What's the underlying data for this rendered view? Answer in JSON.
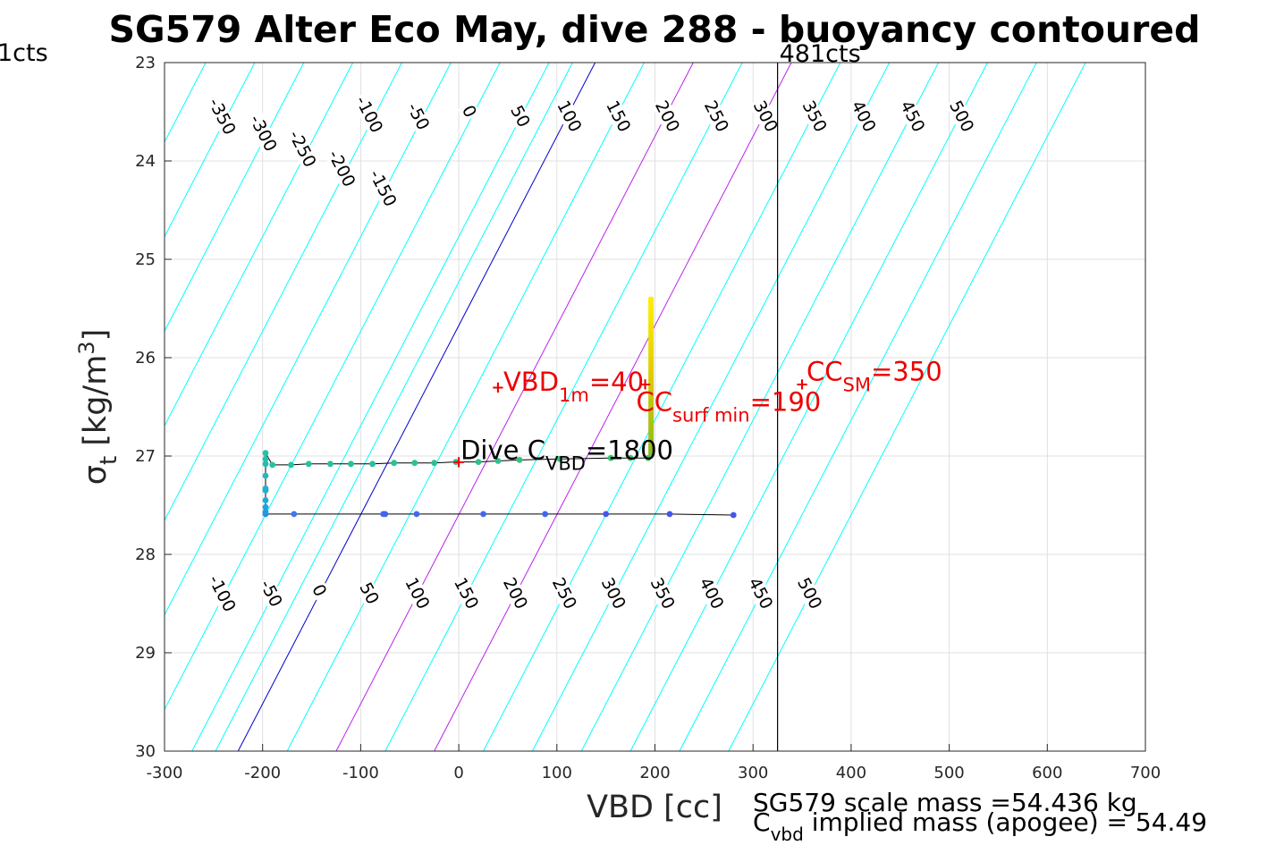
{
  "chart_data": {
    "type": "line",
    "title": "SG579 Alter Eco May, dive 288 - buoyancy contoured",
    "xlabel": "VBD [cc]",
    "ylabel": "σt [kg/m3]",
    "xlim": [
      -300,
      700
    ],
    "ylim": [
      23,
      30
    ],
    "y_reversed": true,
    "grid": true,
    "x_ticks": [
      "-300",
      "-200",
      "-100",
      "0",
      "100",
      "200",
      "300",
      "400",
      "500",
      "600",
      "700"
    ],
    "y_ticks": [
      "23",
      "24",
      "25",
      "26",
      "27",
      "28",
      "29",
      "30"
    ],
    "contour_levels": [
      -350,
      -300,
      -250,
      -200,
      -150,
      -100,
      -50,
      0,
      50,
      100,
      150,
      200,
      250,
      300,
      350,
      400,
      450,
      500
    ],
    "contour_colors": {
      "default": "#00ffff",
      "zero": "#0000cc",
      "highlight": "#bb22ee"
    },
    "contour_intercepts_at_30": [
      {
        "level": -100,
        "x": -272
      },
      {
        "level": -50,
        "x": -248
      },
      {
        "level": 0,
        "x": -225
      },
      {
        "level": 50,
        "x": -175
      },
      {
        "level": 100,
        "x": -125
      },
      {
        "level": 150,
        "x": -75
      },
      {
        "level": 200,
        "x": -25
      },
      {
        "level": 250,
        "x": 25
      },
      {
        "level": 300,
        "x": 75
      },
      {
        "level": 350,
        "x": 125
      },
      {
        "level": 400,
        "x": 175
      },
      {
        "level": 450,
        "x": 225
      },
      {
        "level": 500,
        "x": 275
      }
    ],
    "contour_slope_cc_per_sigma": 52,
    "top_labels": [
      {
        "text": "-350",
        "x": -242,
        "y": 23.55
      },
      {
        "text": "-300",
        "x": -200,
        "y": 23.72
      },
      {
        "text": "-250",
        "x": -160,
        "y": 23.88
      },
      {
        "text": "-200",
        "x": -120,
        "y": 24.08
      },
      {
        "text": "-150",
        "x": -78,
        "y": 24.28
      },
      {
        "text": "-100",
        "x": -92,
        "y": 23.53
      },
      {
        "text": "-50",
        "x": -42,
        "y": 23.55
      },
      {
        "text": "0",
        "x": 10,
        "y": 23.5
      },
      {
        "text": "50",
        "x": 62,
        "y": 23.55
      },
      {
        "text": "100",
        "x": 112,
        "y": 23.55
      },
      {
        "text": "150",
        "x": 162,
        "y": 23.55
      },
      {
        "text": "200",
        "x": 212,
        "y": 23.55
      },
      {
        "text": "250",
        "x": 262,
        "y": 23.55
      },
      {
        "text": "300",
        "x": 312,
        "y": 23.55
      },
      {
        "text": "350",
        "x": 362,
        "y": 23.55
      },
      {
        "text": "400",
        "x": 412,
        "y": 23.55
      },
      {
        "text": "450",
        "x": 462,
        "y": 23.55
      },
      {
        "text": "500",
        "x": 512,
        "y": 23.55
      }
    ],
    "bottom_labels": [
      {
        "text": "-100",
        "x": -242,
        "y": 28.4
      },
      {
        "text": "-50",
        "x": -192,
        "y": 28.4
      },
      {
        "text": "0",
        "x": -143,
        "y": 28.37
      },
      {
        "text": "50",
        "x": -92,
        "y": 28.4
      },
      {
        "text": "100",
        "x": -43,
        "y": 28.4
      },
      {
        "text": "150",
        "x": 7,
        "y": 28.4
      },
      {
        "text": "200",
        "x": 57,
        "y": 28.4
      },
      {
        "text": "250",
        "x": 107,
        "y": 28.4
      },
      {
        "text": "300",
        "x": 157,
        "y": 28.4
      },
      {
        "text": "350",
        "x": 207,
        "y": 28.4
      },
      {
        "text": "400",
        "x": 257,
        "y": 28.4
      },
      {
        "text": "450",
        "x": 307,
        "y": 28.4
      },
      {
        "text": "500",
        "x": 357,
        "y": 28.4
      }
    ],
    "vertical_line": {
      "x": 325,
      "label": "481cts",
      "color": "#000000"
    },
    "left_edge_label": "1cts",
    "dive_series": {
      "name": "dive 288",
      "line_color": "#000000",
      "points": [
        {
          "x": 280,
          "y": 27.6,
          "color": "#4455ee"
        },
        {
          "x": 215,
          "y": 27.59,
          "color": "#4455ee"
        },
        {
          "x": 150,
          "y": 27.59,
          "color": "#4455ee"
        },
        {
          "x": 88,
          "y": 27.59,
          "color": "#4466ee"
        },
        {
          "x": 25,
          "y": 27.59,
          "color": "#4466ee"
        },
        {
          "x": -43,
          "y": 27.59,
          "color": "#4466ee"
        },
        {
          "x": -75,
          "y": 27.59,
          "color": "#4466ee"
        },
        {
          "x": -77,
          "y": 27.59,
          "color": "#4466ee"
        },
        {
          "x": -168,
          "y": 27.59,
          "color": "#4477ee"
        },
        {
          "x": -197,
          "y": 27.59,
          "color": "#2288ee"
        },
        {
          "x": -197,
          "y": 27.57,
          "color": "#2299e0"
        },
        {
          "x": -197,
          "y": 27.52,
          "color": "#20a0dd"
        },
        {
          "x": -197,
          "y": 27.45,
          "color": "#20a8d8"
        },
        {
          "x": -197,
          "y": 27.35,
          "color": "#22b0d0"
        },
        {
          "x": -197,
          "y": 27.33,
          "color": "#22b0d0"
        },
        {
          "x": -197,
          "y": 27.2,
          "color": "#22b8c0"
        },
        {
          "x": -197,
          "y": 27.08,
          "color": "#25bbb0"
        },
        {
          "x": -197,
          "y": 27.03,
          "color": "#25c0a8"
        },
        {
          "x": -197,
          "y": 26.97,
          "color": "#25c0a8"
        },
        {
          "x": -190,
          "y": 27.09,
          "color": "#28c0a0"
        },
        {
          "x": -171,
          "y": 27.09,
          "color": "#28c0a0"
        },
        {
          "x": -153,
          "y": 27.08,
          "color": "#28c0a0"
        },
        {
          "x": -131,
          "y": 27.08,
          "color": "#28c0a0"
        },
        {
          "x": -110,
          "y": 27.08,
          "color": "#2ac098"
        },
        {
          "x": -88,
          "y": 27.08,
          "color": "#2ac098"
        },
        {
          "x": -66,
          "y": 27.07,
          "color": "#2ac098"
        },
        {
          "x": -45,
          "y": 27.07,
          "color": "#2ac098"
        },
        {
          "x": -25,
          "y": 27.07,
          "color": "#2ec090"
        },
        {
          "x": -3,
          "y": 27.06,
          "color": "#2ec090"
        },
        {
          "x": 20,
          "y": 27.06,
          "color": "#30c088"
        },
        {
          "x": 40,
          "y": 27.05,
          "color": "#30c088"
        },
        {
          "x": 62,
          "y": 27.04,
          "color": "#33c080"
        },
        {
          "x": 103,
          "y": 27.03,
          "color": "#36c078"
        },
        {
          "x": 155,
          "y": 27.02,
          "color": "#3ac070"
        },
        {
          "x": 175,
          "y": 27.02,
          "color": "#3ec068"
        },
        {
          "x": 193,
          "y": 27.02,
          "color": "#44c060"
        }
      ]
    },
    "surface_bar": {
      "x": 196,
      "y_top": 25.38,
      "y_bottom": 27.0,
      "color_top": "#ffee00",
      "color_bottom": "#88bb22"
    },
    "markers": [
      {
        "text": "VBD",
        "sub": "1m",
        "suffix": "=40",
        "x": 40,
        "y": 26.3,
        "color": "#ee0000"
      },
      {
        "text": "CC",
        "sub": "surf min",
        "suffix": "=190",
        "x": 190,
        "y": 26.27,
        "color": "#ee0000"
      },
      {
        "text": "CC",
        "sub": "SM",
        "suffix": "=350",
        "x": 350,
        "y": 26.27,
        "color": "#ee0000"
      },
      {
        "text": "Dive C",
        "sub": "VBD",
        "suffix": "=1800",
        "x": 0,
        "y": 27.06,
        "color": "#000000",
        "marker_color": "#ee0000"
      }
    ],
    "footer": {
      "line1": "SG579 scale mass =54.436 kg",
      "line2_prefix": "C",
      "line2_sub": "vbd",
      "line2_suffix": " implied mass (apogee) = 54.49"
    }
  }
}
